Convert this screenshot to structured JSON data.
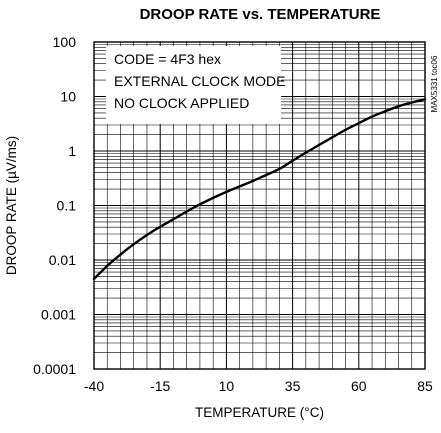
{
  "chart_data": {
    "type": "line",
    "title": "DROOP RATE vs. TEMPERATURE",
    "xlabel": "TEMPERATURE (°C)",
    "ylabel": "DROOP RATE (µV/ms)",
    "xlim": [
      -40,
      85
    ],
    "ylim": [
      0.0001,
      100
    ],
    "yscale": "log",
    "grid": true,
    "x_ticks": [
      -40,
      -15,
      10,
      35,
      60,
      85
    ],
    "x_tick_labels": [
      "-40",
      "-15",
      "10",
      "35",
      "60",
      "85"
    ],
    "y_ticks": [
      100,
      10,
      1,
      0.1,
      0.01,
      0.001,
      0.0001
    ],
    "y_tick_labels": [
      "100",
      "10",
      "1",
      "0.1",
      "0.01",
      "0.001",
      "0.0001"
    ],
    "annotations": [
      "CODE = 4F3 hex",
      "EXTERNAL CLOCK MODE",
      "NO CLOCK APPLIED"
    ],
    "side_label": "MAX5331 toc06",
    "series": [
      {
        "x": [
          -40,
          -35,
          -30,
          -25,
          -20,
          -15,
          -10,
          -5,
          0,
          5,
          10,
          15,
          20,
          25,
          30,
          35,
          40,
          45,
          50,
          55,
          60,
          65,
          70,
          75,
          80,
          85
        ],
        "y": [
          0.0045,
          0.0078,
          0.0126,
          0.0195,
          0.0288,
          0.0407,
          0.056,
          0.0776,
          0.105,
          0.138,
          0.178,
          0.224,
          0.282,
          0.363,
          0.468,
          0.661,
          0.933,
          1.29,
          1.78,
          2.45,
          3.24,
          4.27,
          5.37,
          6.61,
          7.76,
          8.91
        ]
      }
    ]
  }
}
